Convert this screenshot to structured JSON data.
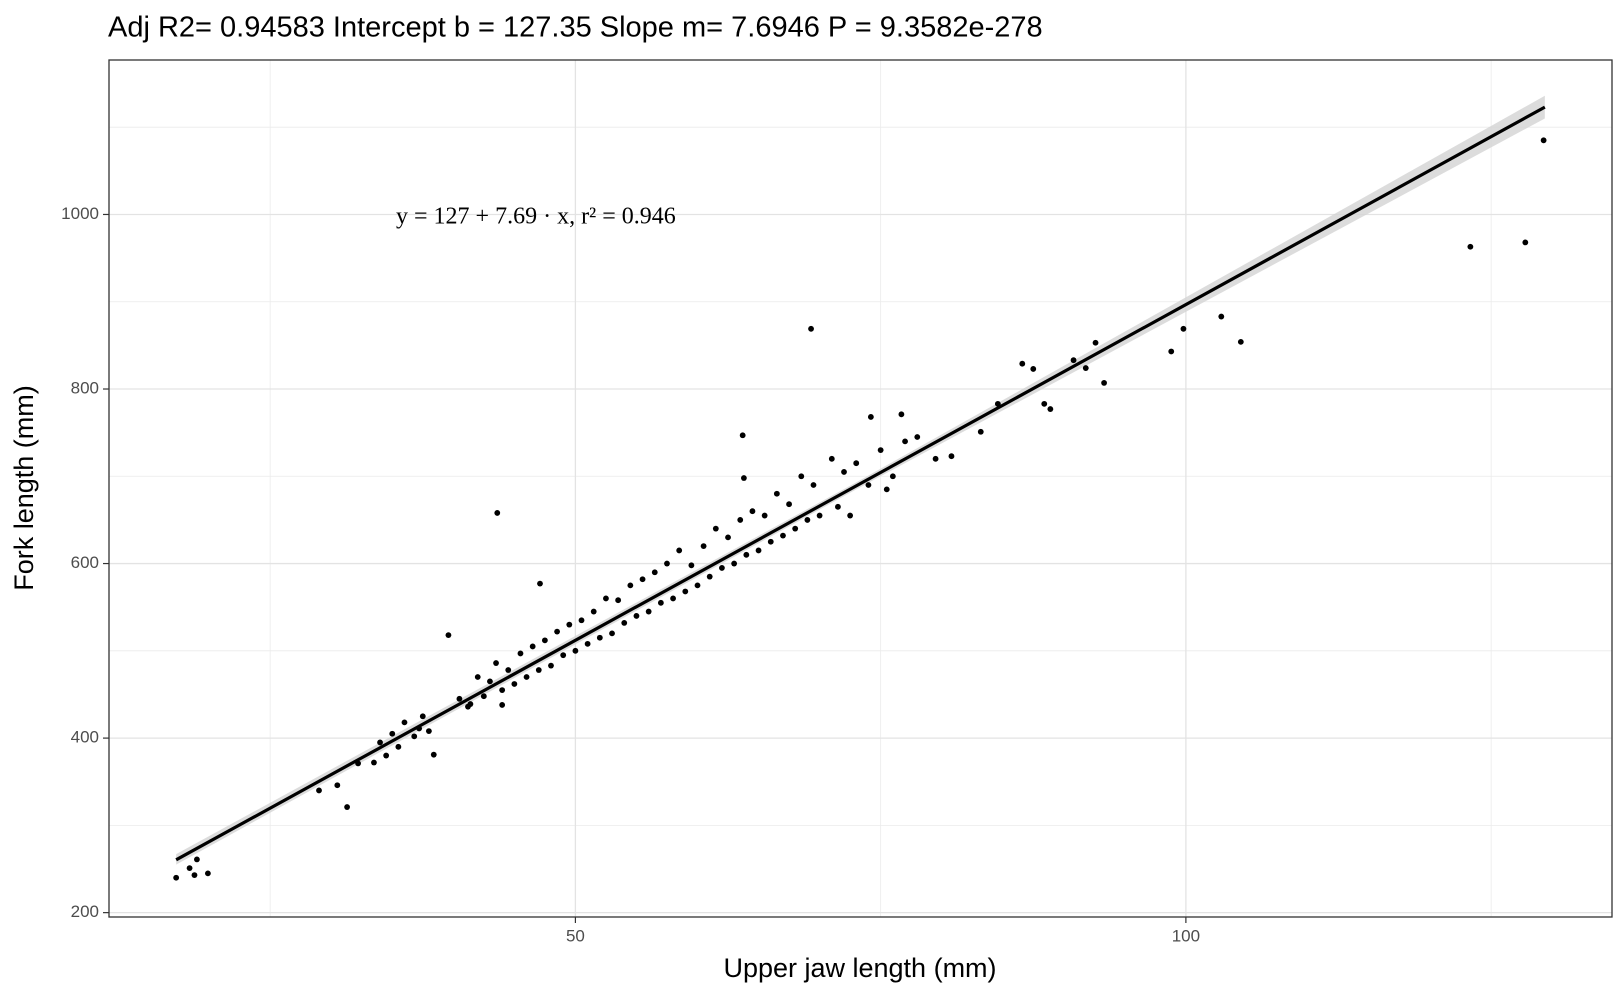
{
  "chart_data": {
    "type": "scatter",
    "title": "Adj R2=  0.94583 Intercept b =  127.35 Slope m=  7.6946 P =  9.3582e-278",
    "xlabel": "Upper jaw length (mm)",
    "ylabel": "Fork length (mm)",
    "annotation": "y = 127 + 7.69 · x,  r² = 0.946",
    "color": "#000000",
    "x": [
      17.3,
      18.4,
      19.0,
      18.8,
      19.9,
      29.0,
      30.5,
      31.3,
      32.2,
      39.6,
      43.6,
      47.1,
      69.3,
      63.7,
      63.8,
      86.6,
      87.5,
      88.4,
      88.9,
      92.6,
      93.3,
      90.8,
      91.8,
      98.8,
      99.8,
      102.9,
      104.5,
      123.3,
      127.8,
      129.3,
      74.2,
      76.7,
      80.8,
      83.2,
      84.6,
      44.0,
      41.4,
      38.4,
      37.2,
      33.5,
      34.0,
      34.5,
      35.0,
      35.5,
      36.0,
      36.8,
      37.5,
      38.0,
      40.5,
      41.2,
      42.0,
      42.5,
      43.0,
      43.5,
      44.0,
      44.5,
      45.0,
      45.5,
      46.0,
      46.5,
      47.0,
      47.5,
      48.0,
      48.5,
      49.0,
      49.5,
      50.0,
      50.5,
      51.0,
      51.5,
      52.0,
      52.5,
      53.0,
      53.5,
      54.0,
      54.5,
      55.0,
      55.5,
      56.0,
      56.5,
      57.0,
      57.5,
      58.0,
      58.5,
      59.0,
      59.5,
      60.0,
      60.5,
      61.0,
      61.5,
      62.0,
      62.5,
      63.0,
      63.5,
      64.0,
      64.5,
      65.0,
      65.5,
      66.0,
      66.5,
      67.0,
      67.5,
      68.0,
      68.5,
      69.0,
      69.5,
      70.0,
      71.0,
      71.5,
      72.0,
      72.5,
      73.0,
      74.0,
      75.0,
      75.5,
      76.0,
      77.0,
      78.0,
      79.5
    ],
    "values": [
      240,
      251,
      261,
      243,
      245,
      340,
      346,
      321,
      371,
      518,
      658,
      577,
      869,
      747,
      698,
      829,
      823,
      783,
      777,
      853,
      807,
      833,
      824,
      843,
      869,
      883,
      854,
      963,
      968,
      1085,
      768,
      771,
      723,
      751,
      783,
      438,
      439,
      381,
      411,
      372,
      395,
      380,
      405,
      390,
      418,
      402,
      425,
      408,
      445,
      436,
      470,
      448,
      465,
      486,
      455,
      478,
      462,
      497,
      470,
      505,
      478,
      512,
      483,
      522,
      495,
      530,
      500,
      535,
      508,
      545,
      515,
      560,
      520,
      558,
      532,
      575,
      540,
      582,
      545,
      590,
      555,
      600,
      560,
      615,
      568,
      598,
      575,
      620,
      585,
      640,
      595,
      630,
      600,
      650,
      610,
      660,
      615,
      655,
      625,
      680,
      632,
      668,
      640,
      700,
      650,
      690,
      655,
      720,
      665,
      705,
      655,
      715,
      690,
      730,
      685,
      700,
      740,
      745,
      720
    ],
    "fit": {
      "x": [
        17.3,
        73.0,
        129.4
      ],
      "values": [
        260.5,
        689,
        1123
      ],
      "lower": [
        255,
        685,
        1110
      ],
      "upper": [
        267,
        693,
        1136
      ],
      "color": "#000000",
      "band_color": "#d3d3d3"
    },
    "xlim": [
      11.8,
      134.9
    ],
    "ylim": [
      195,
      1177
    ],
    "xticks": [
      50,
      100
    ],
    "yticks": [
      200,
      400,
      600,
      800,
      1000
    ],
    "xminor": [
      25,
      75,
      125
    ],
    "yminor": [
      300,
      500,
      700,
      900,
      1100
    ],
    "grid": true
  }
}
